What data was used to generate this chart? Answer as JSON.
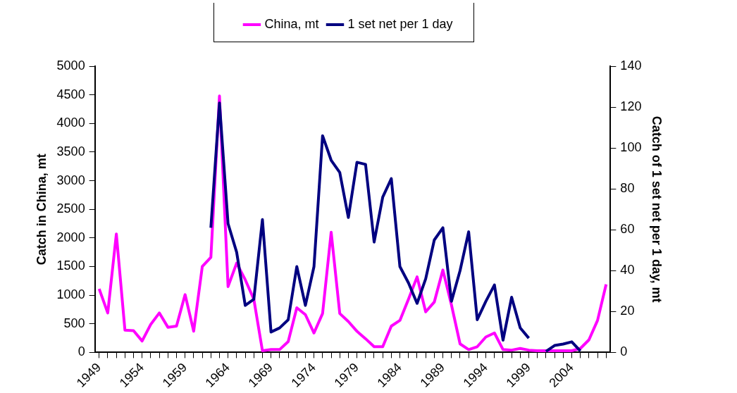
{
  "chart_data": {
    "type": "line",
    "categories": [
      "1949",
      null,
      null,
      null,
      null,
      "1954",
      null,
      null,
      null,
      null,
      "1959",
      null,
      null,
      null,
      null,
      "1964",
      null,
      null,
      null,
      null,
      "1969",
      null,
      null,
      null,
      null,
      "1974",
      null,
      null,
      null,
      null,
      "1979",
      null,
      null,
      null,
      null,
      "1984",
      null,
      null,
      null,
      null,
      "1989",
      null,
      null,
      null,
      null,
      "1994",
      null,
      null,
      null,
      null,
      "1999",
      null,
      null,
      null,
      null,
      "2004",
      null,
      null,
      null,
      null
    ],
    "series": [
      {
        "name": "China, mt",
        "color": "#ff00ff",
        "values": [
          1110,
          690,
          2070,
          390,
          380,
          200,
          490,
          690,
          440,
          460,
          1010,
          370,
          1500,
          1660,
          4480,
          1150,
          1560,
          1270,
          930,
          30,
          50,
          50,
          190,
          780,
          660,
          340,
          680,
          2100,
          680,
          540,
          370,
          240,
          100,
          100,
          460,
          560,
          930,
          1320,
          710,
          880,
          1440,
          830,
          150,
          50,
          100,
          270,
          340,
          50,
          40,
          70,
          40,
          30,
          30,
          30,
          30,
          30,
          70,
          220,
          560,
          1190
        ]
      },
      {
        "name": "1 set net per 1 day",
        "color": "#000080",
        "axis": "y2",
        "values": [
          null,
          null,
          null,
          null,
          null,
          null,
          null,
          null,
          null,
          null,
          null,
          null,
          null,
          61,
          122,
          63,
          49,
          23,
          26,
          65,
          10,
          12,
          16,
          42,
          23,
          42,
          106,
          94,
          88,
          66,
          93,
          92,
          54,
          76,
          85,
          42,
          34,
          24,
          36,
          55,
          61,
          25,
          40,
          59,
          16,
          25,
          33,
          6,
          27,
          12,
          7,
          null,
          0.5,
          3.4,
          4.1,
          5.2,
          0.7,
          null,
          null,
          null
        ]
      }
    ],
    "ylabel": "Catch in China, mt",
    "y2label": "Catch of 1 set net per 1 day, mt",
    "ylim": [
      0,
      5000
    ],
    "yticks": [
      0,
      500,
      1000,
      1500,
      2000,
      2500,
      3000,
      3500,
      4000,
      4500,
      5000
    ],
    "y2lim": [
      0,
      140
    ],
    "y2ticks": [
      0,
      20,
      40,
      60,
      80,
      100,
      120,
      140
    ],
    "legend": "top",
    "grid": false,
    "marker": "none",
    "line_style": "solid"
  }
}
